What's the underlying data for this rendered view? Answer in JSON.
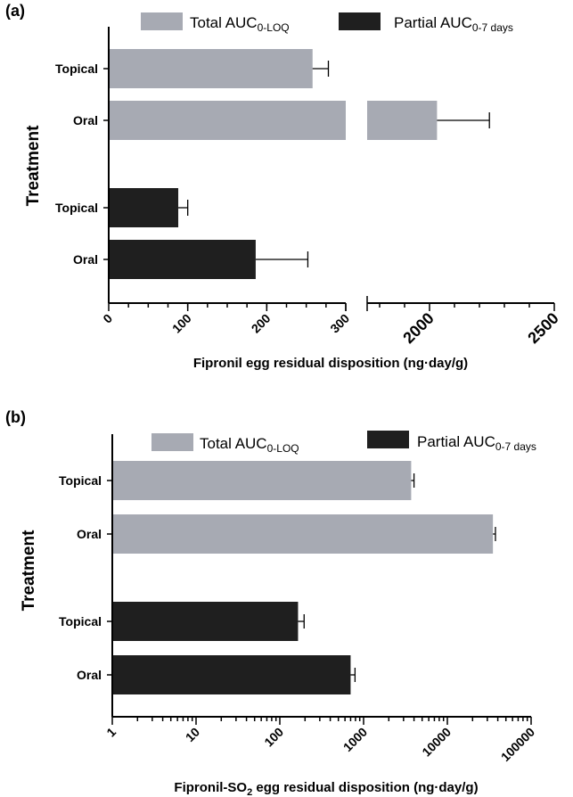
{
  "colors": {
    "total": "#a7aab3",
    "partial": "#1f1f1f"
  },
  "chart_data": [
    {
      "type": "bar",
      "panel_label": "(a)",
      "orientation": "horizontal",
      "legend": {
        "total": "Total AUC",
        "total_sub": "0-LOQ",
        "partial": "Partial AUC",
        "partial_sub": "0-7 days"
      },
      "ylabel": "Treatment",
      "xlabel": "Fipronil egg residual disposition (ng·day/g)",
      "x_scale": "linear-broken",
      "x_segment_1": [
        0,
        300
      ],
      "x_segment_2": [
        1750,
        2500
      ],
      "x_ticks_1": [
        0,
        100,
        200,
        300
      ],
      "x_tick_labels_1": [
        "0",
        "100",
        "200",
        "300"
      ],
      "x_ticks_2": [
        2000,
        2500
      ],
      "x_tick_labels_2": [
        "2000",
        "2500"
      ],
      "bars": [
        {
          "group": "Total AUC0-LOQ",
          "label": "Topical",
          "value": 258,
          "error": 20
        },
        {
          "group": "Total AUC0-LOQ",
          "label": "Oral",
          "value": 2030,
          "error": 210
        },
        {
          "group": "Partial AUC0-7 days",
          "label": "Topical",
          "value": 88,
          "error": 12
        },
        {
          "group": "Partial AUC0-7 days",
          "label": "Oral",
          "value": 186,
          "error": 66
        }
      ]
    },
    {
      "type": "bar",
      "panel_label": "(b)",
      "orientation": "horizontal",
      "legend": {
        "total": "Total AUC",
        "total_sub": "0-LOQ",
        "partial": "Partial AUC",
        "partial_sub": "0-7 days"
      },
      "ylabel": "Treatment",
      "xlabel_pre": "Fipronil-SO",
      "xlabel_sub": "2",
      "xlabel_post": " egg residual disposition (ng·day/g)",
      "x_scale": "log",
      "xlim": [
        1,
        100000
      ],
      "x_ticks": [
        1,
        10,
        100,
        1000,
        10000,
        100000
      ],
      "x_tick_labels": [
        "1",
        "10",
        "100",
        "1000",
        "10000",
        "100000"
      ],
      "bars": [
        {
          "group": "Total AUC0-LOQ",
          "label": "Topical",
          "value": 3700,
          "error": 300
        },
        {
          "group": "Total AUC0-LOQ",
          "label": "Oral",
          "value": 35000,
          "error": 2500
        },
        {
          "group": "Partial AUC0-7 days",
          "label": "Topical",
          "value": 165,
          "error": 30
        },
        {
          "group": "Partial AUC0-7 days",
          "label": "Oral",
          "value": 700,
          "error": 90
        }
      ]
    }
  ]
}
